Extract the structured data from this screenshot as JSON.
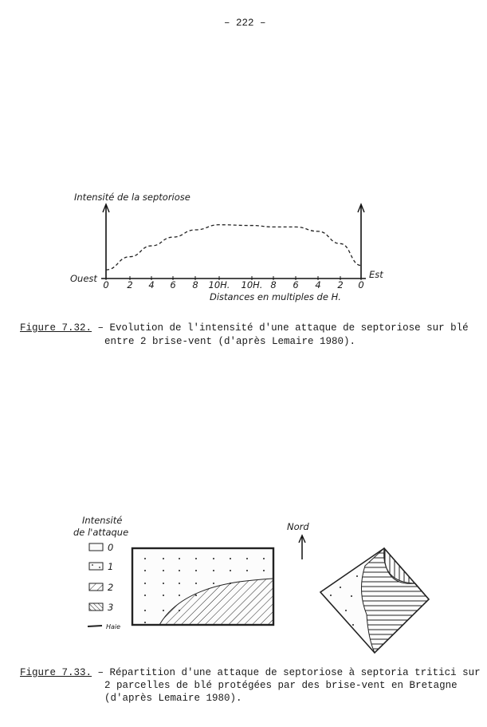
{
  "page_number": "– 222 –",
  "figure_1": {
    "label": "Figure 7.32.",
    "caption_line1": "– Evolution de l'intensité d'une attaque de septoriose sur blé",
    "caption_line2": "entre 2 brise-vent (d'après Lemaire 1980).",
    "left_label": "Ouest",
    "right_label": "Est"
  },
  "chart_data": {
    "type": "line",
    "ylabel": "Intensité de la septoriose",
    "xlabel": "Distances en multiples de H.",
    "categories": [
      "0",
      "2",
      "4",
      "6",
      "8",
      "10H.",
      "10H.",
      "8",
      "6",
      "4",
      "2",
      "0"
    ],
    "series": [
      {
        "values": [
          0.12,
          0.3,
          0.45,
          0.57,
          0.67,
          0.74,
          0.73,
          0.71,
          0.71,
          0.65,
          0.48,
          0.18
        ],
        "style": "dashed"
      }
    ],
    "ylim": [
      0,
      1
    ],
    "grid": false
  },
  "figure_2": {
    "label": "Figure 7.33.",
    "caption_line1": "– Répartition d'une attaque de septoriose à septoria tritici sur",
    "caption_line2": "2 parcelles de blé protégées par des brise-vent en Bretagne",
    "caption_line3": "(d'après Lemaire 1980).",
    "legend_title_line1": "Intensité",
    "legend_title_line2": "de l'attaque",
    "legend": [
      {
        "label": "0",
        "pattern": "blank"
      },
      {
        "label": "1",
        "pattern": "dots"
      },
      {
        "label": "2",
        "pattern": "diagonal-hatch"
      },
      {
        "label": "3",
        "pattern": "dense-diagonal-hatch"
      },
      {
        "label": "Haie",
        "pattern": "hedge-line"
      }
    ],
    "north_label": "Nord"
  }
}
